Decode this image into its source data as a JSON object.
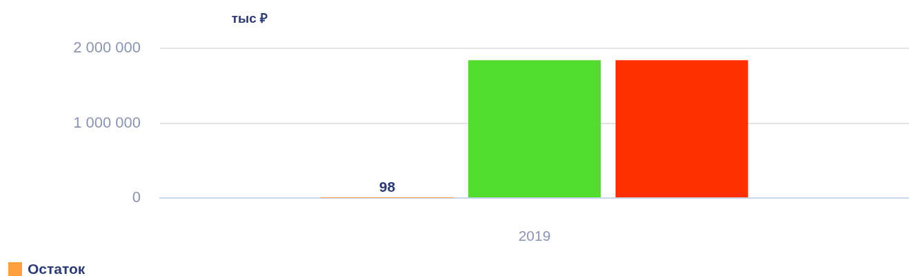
{
  "chart_data": {
    "type": "bar",
    "ylabel": "тыс ₽",
    "categories": [
      "2019"
    ],
    "series": [
      {
        "name": "Остаток",
        "color": "#ffa040",
        "values": [
          98
        ],
        "value_labels": [
          "98"
        ]
      },
      {
        "color": "#52dc2e",
        "values": [
          1840000
        ]
      },
      {
        "color": "#ff3000",
        "values": [
          1840000
        ]
      }
    ],
    "ylim": [
      0,
      2000000
    ],
    "yticks": [
      {
        "value": 0,
        "label": "0"
      },
      {
        "value": 1000000,
        "label": "1 000 000"
      },
      {
        "value": 2000000,
        "label": "2 000 000"
      }
    ],
    "grid": "y",
    "legend": "bottom left"
  }
}
